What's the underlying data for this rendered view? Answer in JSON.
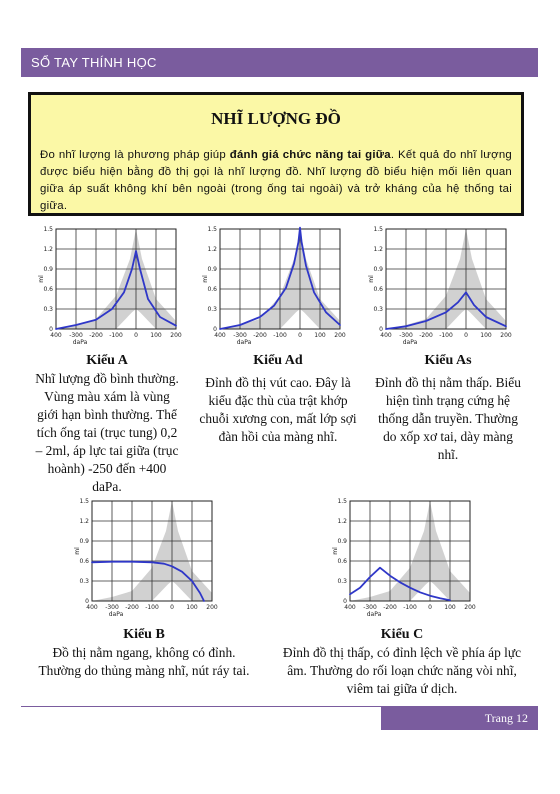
{
  "header": {
    "title": "SỔ TAY THÍNH HỌC"
  },
  "intro": {
    "title": "NHĨ LƯỢNG ĐỒ",
    "body_before": "Đo nhĩ lượng là phương pháp giúp ",
    "body_bold": "đánh giá chức năng tai giữa",
    "body_after": ". Kết quả đo nhĩ lượng được biểu hiện bằng đồ thị gọi là nhĩ lượng đồ. Nhĩ lượng đồ biểu hiện mối liên quan giữa áp suất không khí bên ngoài (trong ống tai ngoài) và trở kháng của hệ thống tai giữa."
  },
  "colors": {
    "accent": "#7a5c9e",
    "highlight": "#fbf8a6",
    "curve": "#2f37c8",
    "shade": "#c9c9c9"
  },
  "chart_data": [
    {
      "type": "line",
      "id": "A",
      "ylabel": "ml",
      "xlabel": "daPa",
      "xlim": [
        -400,
        200
      ],
      "ylim": [
        0,
        1.5
      ],
      "yticks": [
        "1.5",
        "1.2",
        "0.9",
        "0.6",
        "0.3",
        "0"
      ],
      "xticks": [
        "400",
        "-300",
        "-200",
        "-100",
        "0",
        "100",
        "200"
      ],
      "x": [
        -400,
        -300,
        -200,
        -120,
        -60,
        -20,
        0,
        20,
        60,
        120,
        200
      ],
      "y": [
        0.0,
        0.06,
        0.14,
        0.3,
        0.55,
        0.9,
        1.17,
        0.9,
        0.45,
        0.18,
        0.05
      ]
    },
    {
      "type": "line",
      "id": "Ad",
      "ylabel": "ml",
      "xlabel": "daPa",
      "xlim": [
        -400,
        200
      ],
      "ylim": [
        0,
        1.5
      ],
      "yticks": [
        "1.5",
        "1.2",
        "0.9",
        "0.6",
        "0.3",
        "0"
      ],
      "xticks": [
        "400",
        "-300",
        "-200",
        "-100",
        "0",
        "100",
        "200"
      ],
      "x": [
        -400,
        -300,
        -200,
        -130,
        -70,
        -30,
        -8,
        0,
        8,
        30,
        70,
        130,
        200
      ],
      "y": [
        0.0,
        0.06,
        0.18,
        0.35,
        0.62,
        0.98,
        1.3,
        1.52,
        1.3,
        0.95,
        0.55,
        0.25,
        0.06
      ]
    },
    {
      "type": "line",
      "id": "As",
      "ylabel": "ml",
      "xlabel": "daPa",
      "xlim": [
        -400,
        200
      ],
      "ylim": [
        0,
        1.5
      ],
      "yticks": [
        "1.5",
        "1.2",
        "0.9",
        "0.6",
        "0.3",
        "0"
      ],
      "xticks": [
        "400",
        "-300",
        "-200",
        "-100",
        "0",
        "100",
        "200"
      ],
      "x": [
        -400,
        -300,
        -200,
        -100,
        -40,
        0,
        40,
        100,
        200
      ],
      "y": [
        0.0,
        0.04,
        0.12,
        0.25,
        0.4,
        0.55,
        0.36,
        0.18,
        0.04
      ]
    },
    {
      "type": "line",
      "id": "B",
      "ylabel": "ml",
      "xlabel": "daPa",
      "xlim": [
        -400,
        200
      ],
      "ylim": [
        0,
        1.5
      ],
      "yticks": [
        "1.5",
        "1.2",
        "0.9",
        "0.6",
        "0.3",
        "0"
      ],
      "xticks": [
        "400",
        "-300",
        "-200",
        "-100",
        "0",
        "100",
        "200"
      ],
      "x": [
        -400,
        -300,
        -200,
        -100,
        -40,
        0,
        50,
        100,
        140,
        160
      ],
      "y": [
        0.58,
        0.59,
        0.59,
        0.58,
        0.56,
        0.52,
        0.44,
        0.3,
        0.12,
        0.0
      ]
    },
    {
      "type": "line",
      "id": "C",
      "ylabel": "ml",
      "xlabel": "daPa",
      "xlim": [
        -400,
        200
      ],
      "ylim": [
        0,
        1.5
      ],
      "yticks": [
        "1.5",
        "1.2",
        "0.9",
        "0.6",
        "0.3",
        "0"
      ],
      "xticks": [
        "400",
        "-300",
        "-200",
        "-100",
        "0",
        "100",
        "200"
      ],
      "x": [
        -400,
        -350,
        -300,
        -250,
        -200,
        -150,
        -100,
        -50,
        0,
        50,
        100
      ],
      "y": [
        0.1,
        0.2,
        0.36,
        0.5,
        0.38,
        0.28,
        0.2,
        0.13,
        0.08,
        0.04,
        0.01
      ]
    }
  ],
  "captions": [
    {
      "title": "Kiểu A",
      "text": "Nhĩ lượng đồ bình thường. Vùng màu xám là vùng giới hạn bình thường. Thể tích ống tai (trục tung) 0,2 – 2ml, áp lực tai giữa (trục hoành) -250 đến +400 daPa."
    },
    {
      "title": "Kiểu Ad",
      "text": "Đỉnh đồ thị vút cao. Đây là kiểu đặc thù của trật khớp chuỗi xương con, mất lớp sợi đàn hồi của màng nhĩ."
    },
    {
      "title": "Kiểu As",
      "text": "Đỉnh đồ thị nằm thấp. Biểu hiện tình trạng cứng hệ thống dẫn truyền. Thường do xốp xơ tai, dày màng nhĩ."
    },
    {
      "title": "Kiểu B",
      "text": "Đồ thị nằm ngang, không có đỉnh. Thường do thủng màng nhĩ, nút ráy tai."
    },
    {
      "title": "Kiểu C",
      "text": "Đỉnh đồ thị thấp, có đỉnh lệch về phía áp lực âm. Thường do rối loạn chức năng vòi nhĩ, viêm tai giữa ứ dịch."
    }
  ],
  "footer": {
    "page": "Trang 12"
  }
}
